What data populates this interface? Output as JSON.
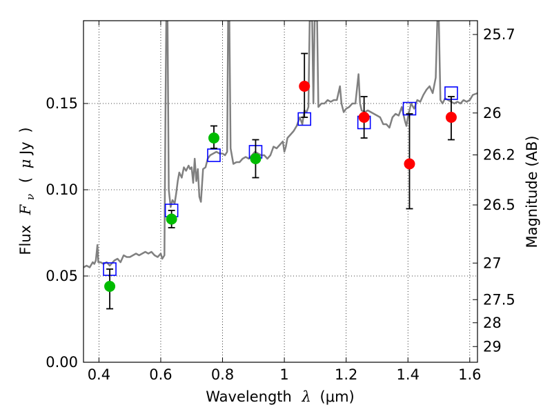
{
  "chart_data": {
    "type": "scatter",
    "x_axis": {
      "label_prefix": "Wavelength",
      "symbol": "λ",
      "unit": "(μm)",
      "range": [
        0.35,
        1.625
      ],
      "ticks": [
        0.4,
        0.6,
        0.8,
        1.0,
        1.2,
        1.4,
        1.6
      ],
      "tick_labels": [
        "0.4",
        "0.6",
        "0.8",
        "1",
        "1.2",
        "1.4",
        "1.6"
      ]
    },
    "y_axis": {
      "label_prefix": "Flux",
      "symbol_main": "F",
      "symbol_sub": "ν",
      "unit_open": "(",
      "unit_mu": "μ",
      "unit_rest": "Jy",
      "unit_close": ")",
      "range": [
        0.0,
        0.198
      ],
      "ticks": [
        0.0,
        0.05,
        0.1,
        0.15
      ],
      "tick_labels": [
        "0.00",
        "0.05",
        "0.10",
        "0.15"
      ]
    },
    "right_axis": {
      "label": "Magnitude (AB)",
      "ticks": [
        {
          "label": "25.7",
          "flux": 0.19
        },
        {
          "label": "26",
          "flux": 0.1445
        },
        {
          "label": "26.2",
          "flux": 0.1202
        },
        {
          "label": "26.5",
          "flux": 0.0912
        },
        {
          "label": "27",
          "flux": 0.0575
        },
        {
          "label": "27.5",
          "flux": 0.0363
        },
        {
          "label": "28",
          "flux": 0.0229
        },
        {
          "label": "29",
          "flux": 0.0091
        }
      ]
    },
    "grid": true,
    "series": [
      {
        "kind": "line",
        "color": "#808080",
        "points": [
          [
            0.35,
            0.055
          ],
          [
            0.36,
            0.056
          ],
          [
            0.37,
            0.055
          ],
          [
            0.38,
            0.058
          ],
          [
            0.385,
            0.057
          ],
          [
            0.39,
            0.059
          ],
          [
            0.395,
            0.068
          ],
          [
            0.398,
            0.058
          ],
          [
            0.405,
            0.058
          ],
          [
            0.415,
            0.057
          ],
          [
            0.425,
            0.058
          ],
          [
            0.435,
            0.056
          ],
          [
            0.45,
            0.059
          ],
          [
            0.46,
            0.06
          ],
          [
            0.47,
            0.058
          ],
          [
            0.48,
            0.062
          ],
          [
            0.49,
            0.061
          ],
          [
            0.5,
            0.061
          ],
          [
            0.51,
            0.062
          ],
          [
            0.52,
            0.063
          ],
          [
            0.53,
            0.062
          ],
          [
            0.54,
            0.063
          ],
          [
            0.55,
            0.064
          ],
          [
            0.56,
            0.063
          ],
          [
            0.57,
            0.064
          ],
          [
            0.58,
            0.062
          ],
          [
            0.59,
            0.061
          ],
          [
            0.6,
            0.063
          ],
          [
            0.605,
            0.06
          ],
          [
            0.612,
            0.062
          ],
          [
            0.615,
            0.14
          ],
          [
            0.618,
            0.198
          ],
          [
            0.622,
            0.198
          ],
          [
            0.626,
            0.1
          ],
          [
            0.632,
            0.09
          ],
          [
            0.638,
            0.094
          ],
          [
            0.645,
            0.092
          ],
          [
            0.65,
            0.098
          ],
          [
            0.655,
            0.105
          ],
          [
            0.66,
            0.11
          ],
          [
            0.668,
            0.107
          ],
          [
            0.675,
            0.113
          ],
          [
            0.682,
            0.111
          ],
          [
            0.69,
            0.114
          ],
          [
            0.695,
            0.112
          ],
          [
            0.7,
            0.113
          ],
          [
            0.705,
            0.104
          ],
          [
            0.71,
            0.118
          ],
          [
            0.715,
            0.105
          ],
          [
            0.72,
            0.112
          ],
          [
            0.725,
            0.096
          ],
          [
            0.73,
            0.093
          ],
          [
            0.737,
            0.112
          ],
          [
            0.745,
            0.113
          ],
          [
            0.752,
            0.118
          ],
          [
            0.76,
            0.12
          ],
          [
            0.77,
            0.121
          ],
          [
            0.78,
            0.122
          ],
          [
            0.79,
            0.121
          ],
          [
            0.8,
            0.121
          ],
          [
            0.808,
            0.12
          ],
          [
            0.815,
            0.122
          ],
          [
            0.818,
            0.198
          ],
          [
            0.822,
            0.198
          ],
          [
            0.826,
            0.124
          ],
          [
            0.835,
            0.115
          ],
          [
            0.845,
            0.116
          ],
          [
            0.855,
            0.116
          ],
          [
            0.865,
            0.118
          ],
          [
            0.875,
            0.119
          ],
          [
            0.885,
            0.118
          ],
          [
            0.895,
            0.12
          ],
          [
            0.905,
            0.122
          ],
          [
            0.915,
            0.121
          ],
          [
            0.925,
            0.12
          ],
          [
            0.935,
            0.12
          ],
          [
            0.945,
            0.118
          ],
          [
            0.955,
            0.12
          ],
          [
            0.965,
            0.125
          ],
          [
            0.975,
            0.124
          ],
          [
            0.985,
            0.126
          ],
          [
            0.995,
            0.128
          ],
          [
            1.0,
            0.122
          ],
          [
            1.005,
            0.125
          ],
          [
            1.01,
            0.13
          ],
          [
            1.02,
            0.132
          ],
          [
            1.03,
            0.134
          ],
          [
            1.04,
            0.137
          ],
          [
            1.05,
            0.142
          ],
          [
            1.058,
            0.138
          ],
          [
            1.065,
            0.146
          ],
          [
            1.072,
            0.145
          ],
          [
            1.078,
            0.148
          ],
          [
            1.082,
            0.198
          ],
          [
            1.09,
            0.198
          ],
          [
            1.094,
            0.15
          ],
          [
            1.098,
            0.198
          ],
          [
            1.106,
            0.198
          ],
          [
            1.11,
            0.148
          ],
          [
            1.12,
            0.15
          ],
          [
            1.13,
            0.15
          ],
          [
            1.14,
            0.152
          ],
          [
            1.15,
            0.151
          ],
          [
            1.16,
            0.152
          ],
          [
            1.17,
            0.152
          ],
          [
            1.18,
            0.16
          ],
          [
            1.185,
            0.15
          ],
          [
            1.192,
            0.145
          ],
          [
            1.2,
            0.147
          ],
          [
            1.21,
            0.148
          ],
          [
            1.22,
            0.15
          ],
          [
            1.23,
            0.15
          ],
          [
            1.24,
            0.167
          ],
          [
            1.245,
            0.15
          ],
          [
            1.25,
            0.146
          ],
          [
            1.26,
            0.145
          ],
          [
            1.27,
            0.146
          ],
          [
            1.28,
            0.145
          ],
          [
            1.29,
            0.144
          ],
          [
            1.3,
            0.143
          ],
          [
            1.31,
            0.142
          ],
          [
            1.32,
            0.138
          ],
          [
            1.33,
            0.138
          ],
          [
            1.34,
            0.136
          ],
          [
            1.35,
            0.142
          ],
          [
            1.36,
            0.144
          ],
          [
            1.37,
            0.143
          ],
          [
            1.38,
            0.148
          ],
          [
            1.39,
            0.14
          ],
          [
            1.395,
            0.137
          ],
          [
            1.4,
            0.142
          ],
          [
            1.41,
            0.15
          ],
          [
            1.42,
            0.147
          ],
          [
            1.43,
            0.152
          ],
          [
            1.44,
            0.151
          ],
          [
            1.45,
            0.155
          ],
          [
            1.46,
            0.158
          ],
          [
            1.47,
            0.16
          ],
          [
            1.48,
            0.156
          ],
          [
            1.49,
            0.165
          ],
          [
            1.495,
            0.198
          ],
          [
            1.5,
            0.198
          ],
          [
            1.505,
            0.152
          ],
          [
            1.512,
            0.15
          ],
          [
            1.52,
            0.153
          ],
          [
            1.53,
            0.152
          ],
          [
            1.54,
            0.151
          ],
          [
            1.55,
            0.15
          ],
          [
            1.56,
            0.151
          ],
          [
            1.57,
            0.15
          ],
          [
            1.58,
            0.152
          ],
          [
            1.59,
            0.151
          ],
          [
            1.6,
            0.152
          ],
          [
            1.61,
            0.155
          ],
          [
            1.625,
            0.156
          ]
        ]
      },
      {
        "kind": "markers",
        "marker": "square",
        "color": "#0000ff",
        "points": [
          [
            0.435,
            0.054
          ],
          [
            0.635,
            0.088
          ],
          [
            0.772,
            0.12
          ],
          [
            0.907,
            0.122
          ],
          [
            1.065,
            0.141
          ],
          [
            1.258,
            0.139
          ],
          [
            1.405,
            0.147
          ],
          [
            1.54,
            0.156
          ]
        ]
      },
      {
        "kind": "markers",
        "marker": "circle",
        "color": "#00bb00",
        "points": [
          {
            "x": 0.435,
            "y": 0.044,
            "err_lo": 0.013,
            "err_hi": 0.01
          },
          {
            "x": 0.635,
            "y": 0.083,
            "err_lo": 0.005,
            "err_hi": 0.005
          },
          {
            "x": 0.772,
            "y": 0.13,
            "err_lo": 0.006,
            "err_hi": 0.007
          },
          {
            "x": 0.907,
            "y": 0.118,
            "err_lo": 0.011,
            "err_hi": 0.011
          }
        ]
      },
      {
        "kind": "markers",
        "marker": "circle",
        "color": "#ff0000",
        "points": [
          {
            "x": 1.065,
            "y": 0.16,
            "err_lo": 0.018,
            "err_hi": 0.019
          },
          {
            "x": 1.258,
            "y": 0.142,
            "err_lo": 0.012,
            "err_hi": 0.012
          },
          {
            "x": 1.405,
            "y": 0.115,
            "err_lo": 0.026,
            "err_hi": 0.029
          },
          {
            "x": 1.54,
            "y": 0.142,
            "err_lo": 0.013,
            "err_hi": 0.012
          }
        ]
      }
    ]
  }
}
